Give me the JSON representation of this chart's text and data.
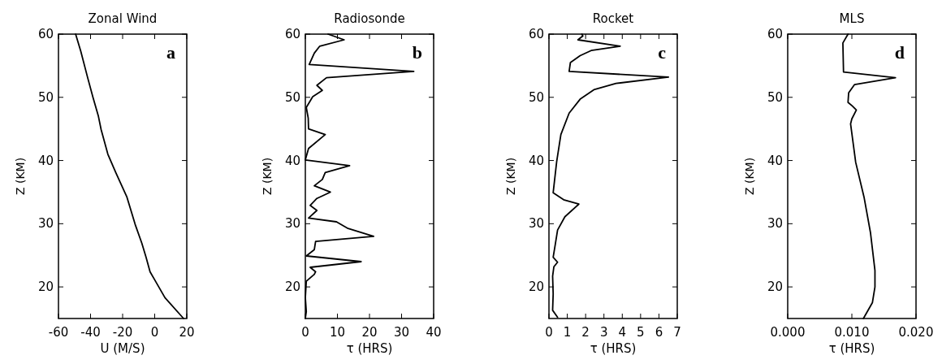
{
  "chart_data": [
    {
      "type": "line",
      "title": "Zonal Wind",
      "xlabel": "U (M/S)",
      "ylabel": "Z (KM)",
      "annotations": [
        "a"
      ],
      "xlim": [
        -60,
        20
      ],
      "xticks": [
        -60,
        -40,
        -20,
        0,
        20
      ],
      "ylim": [
        15,
        60
      ],
      "yticks": [
        20,
        30,
        40,
        50,
        60
      ],
      "grid": false,
      "series": [
        {
          "color": "#000000",
          "x": [
            -49.3,
            -46.1,
            -41.9,
            -38.5,
            -35.1,
            -33.4,
            -29.2,
            -24.1,
            -17.3,
            -12.2,
            -8,
            -5.4,
            -2.9,
            0.5,
            6.4,
            18
          ],
          "values": [
            60,
            57.3,
            53.2,
            50,
            47,
            44.9,
            41,
            38,
            34.2,
            29.9,
            26.9,
            24.7,
            22.4,
            20.9,
            18.3,
            15
          ]
        }
      ]
    },
    {
      "type": "line",
      "title": "Radiosonde",
      "xlabel": "τ (HRS)",
      "ylabel": "Z (KM)",
      "annotations": [
        "b"
      ],
      "xlim": [
        0,
        40
      ],
      "xticks": [
        0,
        10,
        20,
        30,
        40
      ],
      "ylim": [
        15,
        60
      ],
      "yticks": [
        20,
        30,
        40,
        50,
        60
      ],
      "grid": false,
      "series": [
        {
          "color": "#000000",
          "x": [
            0,
            0.3,
            0,
            0.3,
            2.8,
            3.2,
            1.5,
            17.4,
            0.3,
            2.8,
            3.2,
            21.3,
            13.1,
            9.7,
            1,
            3.6,
            1.5,
            3.6,
            7.8,
            2.8,
            5.3,
            6.2,
            13.8,
            0,
            1,
            6.2,
            1,
            0.9,
            0.3,
            2.3,
            5.3,
            3.6,
            6.6,
            33.8,
            1.2,
            2.8,
            4.5,
            12.1,
            7.1
          ],
          "values": [
            15,
            16.1,
            18.3,
            20.9,
            22,
            22.4,
            23.1,
            24,
            24.9,
            25.9,
            27.2,
            28,
            29.3,
            30.3,
            30.9,
            32.1,
            32.9,
            34,
            35,
            36,
            37,
            38.1,
            39.2,
            40.1,
            41.9,
            44.1,
            45,
            46.7,
            48.4,
            50.1,
            51.1,
            51.9,
            53.1,
            54.1,
            55.2,
            57,
            58.1,
            59.1,
            60
          ]
        }
      ]
    },
    {
      "type": "line",
      "title": "Rocket",
      "xlabel": "τ (HRS)",
      "ylabel": "Z (KM)",
      "annotations": [
        "c"
      ],
      "xlim": [
        0,
        7
      ],
      "xticks": [
        0,
        1,
        2,
        3,
        4,
        5,
        6,
        7
      ],
      "ylim": [
        15,
        60
      ],
      "yticks": [
        20,
        30,
        40,
        50,
        60
      ],
      "grid": false,
      "series": [
        {
          "color": "#000000",
          "x": [
            0.47,
            0.2,
            0.23,
            0.2,
            0.27,
            0.47,
            0.23,
            0.35,
            0.47,
            0.87,
            1.63,
            0.8,
            0.23,
            0.42,
            0.65,
            1.1,
            1.7,
            2.45,
            3.66,
            6.52,
            1.1,
            1.17,
            1.7,
            2.3,
            3.89,
            1.58,
            1.85,
            1.8
          ],
          "values": [
            15.2,
            16.3,
            18.9,
            21.7,
            23.2,
            23.9,
            24.7,
            26.8,
            29,
            31.1,
            33.1,
            33.8,
            34.9,
            39.8,
            44.1,
            47.5,
            49.7,
            51.2,
            52.2,
            53.2,
            54.1,
            55.5,
            56.6,
            57.4,
            58.1,
            59.1,
            59.7,
            60
          ]
        }
      ]
    },
    {
      "type": "line",
      "title": "MLS",
      "xlabel": "τ (HRS)",
      "ylabel": "Z (KM)",
      "annotations": [
        "d"
      ],
      "xlim": [
        0,
        0.02
      ],
      "xticks": [
        {
          "value": 0,
          "label": "0.000"
        },
        {
          "value": 0.01,
          "label": "0.010"
        },
        {
          "value": 0.02,
          "label": "0.020"
        }
      ],
      "ylim": [
        15,
        60
      ],
      "yticks": [
        20,
        30,
        40,
        50,
        60
      ],
      "grid": false,
      "series": [
        {
          "color": "#000000",
          "x": [
            0.0118,
            0.0132,
            0.0136,
            0.0136,
            0.0129,
            0.0119,
            0.0106,
            0.0098,
            0.01,
            0.0107,
            0.0101,
            0.0094,
            0.0095,
            0.0104,
            0.0168,
            0.0087,
            0.0086,
            0.0094
          ],
          "values": [
            15,
            17.5,
            20,
            22.6,
            28.6,
            34.2,
            39.7,
            45.8,
            46.6,
            48,
            48.6,
            49.2,
            50.7,
            52,
            53.1,
            54,
            58.6,
            60
          ]
        }
      ]
    }
  ]
}
